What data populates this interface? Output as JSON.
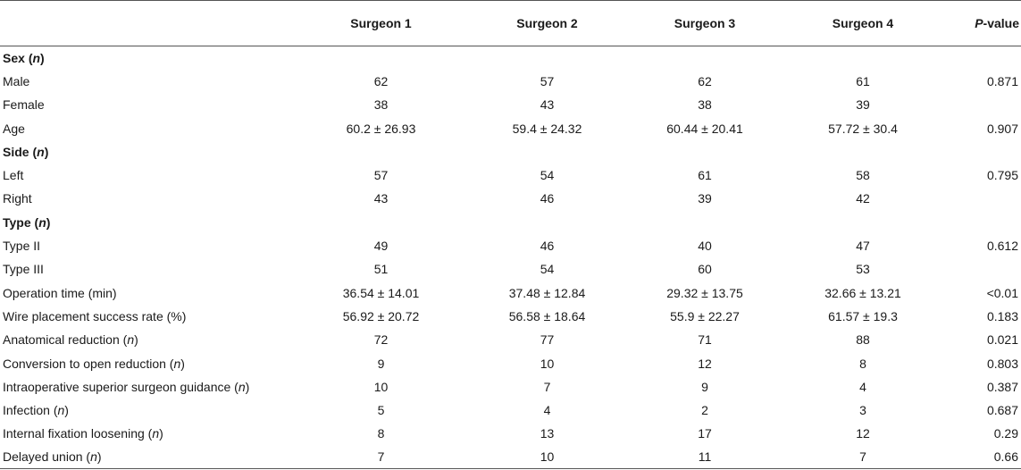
{
  "headers": [
    "",
    "Surgeon 1",
    "Surgeon 2",
    "Surgeon 3",
    "Surgeon 4",
    "P-value"
  ],
  "rows": [
    {
      "kind": "section",
      "label": "Sex",
      "suffix": "(n)",
      "values": [
        "",
        "",
        "",
        ""
      ],
      "p": ""
    },
    {
      "kind": "data",
      "label": "Male",
      "suffix": "",
      "values": [
        "62",
        "57",
        "62",
        "61"
      ],
      "p": "0.871"
    },
    {
      "kind": "data",
      "label": "Female",
      "suffix": "",
      "values": [
        "38",
        "43",
        "38",
        "39"
      ],
      "p": ""
    },
    {
      "kind": "data",
      "label": "Age",
      "suffix": "",
      "values": [
        "60.2 ± 26.93",
        "59.4 ± 24.32",
        "60.44 ± 20.41",
        "57.72 ± 30.4"
      ],
      "p": "0.907"
    },
    {
      "kind": "section",
      "label": "Side",
      "suffix": "(n)",
      "values": [
        "",
        "",
        "",
        ""
      ],
      "p": ""
    },
    {
      "kind": "data",
      "label": "Left",
      "suffix": "",
      "values": [
        "57",
        "54",
        "61",
        "58"
      ],
      "p": "0.795"
    },
    {
      "kind": "data",
      "label": "Right",
      "suffix": "",
      "values": [
        "43",
        "46",
        "39",
        "42"
      ],
      "p": ""
    },
    {
      "kind": "section",
      "label": "Type",
      "suffix": "(n)",
      "values": [
        "",
        "",
        "",
        ""
      ],
      "p": ""
    },
    {
      "kind": "data",
      "label": "Type II",
      "suffix": "",
      "values": [
        "49",
        "46",
        "40",
        "47"
      ],
      "p": "0.612"
    },
    {
      "kind": "data",
      "label": "Type III",
      "suffix": "",
      "values": [
        "51",
        "54",
        "60",
        "53"
      ],
      "p": ""
    },
    {
      "kind": "data",
      "label": "Operation time (min)",
      "suffix": "",
      "values": [
        "36.54 ± 14.01",
        "37.48 ± 12.84",
        "29.32 ± 13.75",
        "32.66 ± 13.21"
      ],
      "p": "<0.01"
    },
    {
      "kind": "data",
      "label": "Wire placement success rate (%)",
      "suffix": "",
      "values": [
        "56.92 ± 20.72",
        "56.58 ± 18.64",
        "55.9 ± 22.27",
        "61.57 ± 19.3"
      ],
      "p": "0.183"
    },
    {
      "kind": "data",
      "label": "Anatomical reduction",
      "suffix": "(n)",
      "values": [
        "72",
        "77",
        "71",
        "88"
      ],
      "p": "0.021"
    },
    {
      "kind": "data",
      "label": "Conversion to open reduction",
      "suffix": "(n)",
      "values": [
        "9",
        "10",
        "12",
        "8"
      ],
      "p": "0.803"
    },
    {
      "kind": "data",
      "label": "Intraoperative superior surgeon guidance",
      "suffix": "(n)",
      "values": [
        "10",
        "7",
        "9",
        "4"
      ],
      "p": "0.387"
    },
    {
      "kind": "data",
      "label": "Infection",
      "suffix": "(n)",
      "values": [
        "5",
        "4",
        "2",
        "3"
      ],
      "p": "0.687"
    },
    {
      "kind": "data",
      "label": "Internal fixation loosening",
      "suffix": "(n)",
      "values": [
        "8",
        "13",
        "17",
        "12"
      ],
      "p": "0.29"
    },
    {
      "kind": "data",
      "label": "Delayed union",
      "suffix": "(n)",
      "values": [
        "7",
        "10",
        "11",
        "7"
      ],
      "p": "0.66"
    }
  ]
}
